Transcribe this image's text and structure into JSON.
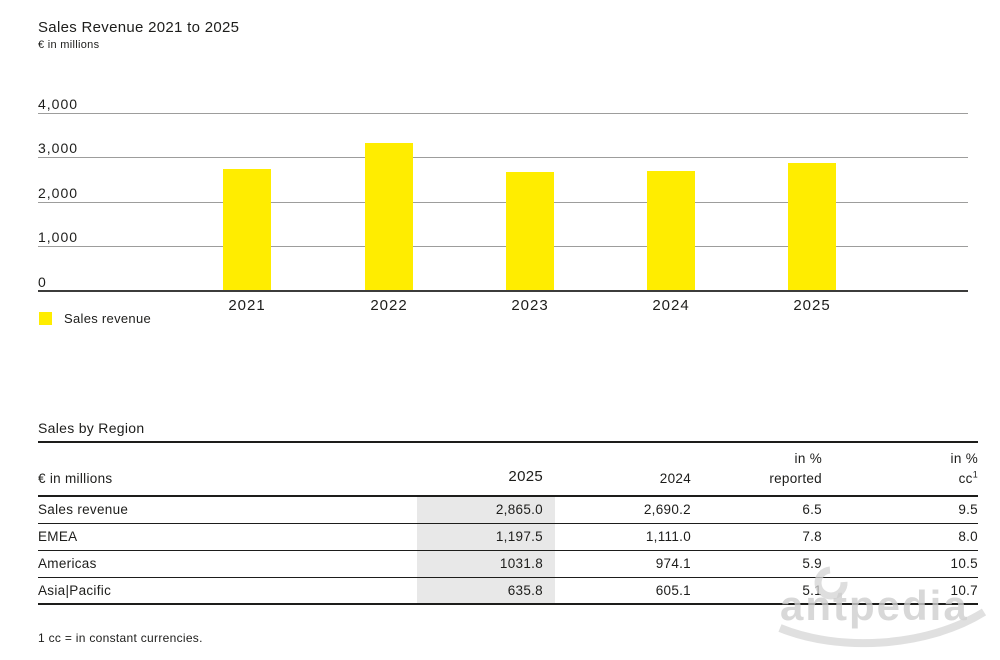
{
  "chart": {
    "title": "Sales Revenue 2021 to 2025",
    "subtitle": "€ in millions",
    "legend_label": "Sales revenue"
  },
  "chart_data": {
    "type": "bar",
    "title": "Sales Revenue 2021 to 2025",
    "ylabel_unit": "€ in millions",
    "categories": [
      "2021",
      "2022",
      "2023",
      "2024",
      "2025"
    ],
    "values": [
      2730,
      3330,
      2670,
      2690.2,
      2865.0
    ],
    "ylim": [
      0,
      4000
    ],
    "tick_values": [
      0,
      1000,
      2000,
      3000,
      4000
    ],
    "tick_labels": [
      "0",
      "1,000",
      "2,000",
      "3,000",
      "4,000"
    ],
    "legend": [
      "Sales revenue"
    ],
    "legend_position": "bottom-left",
    "grid": true,
    "bar_color": "#FFED00",
    "gridline_color": "#9d9d9c",
    "baseline_color": "#3c3c3b"
  },
  "table": {
    "title": "Sales by Region",
    "unit_label": "€ in millions",
    "col_2025": "2025",
    "col_2024": "2024",
    "col_pct_reported_line1": "in %",
    "col_pct_reported_line2": "reported",
    "col_pct_cc_line1": "in %",
    "col_pct_cc_line2": "cc",
    "col_pct_cc_sup": "1",
    "highlight_color": "#e8e8e8",
    "rows": [
      {
        "label": "Sales revenue",
        "y2025": "2,865.0",
        "y2024": "2,690.2",
        "pct_reported": "6.5",
        "pct_cc": "9.5"
      },
      {
        "label": "EMEA",
        "y2025": "1,197.5",
        "y2024": "1,111.0",
        "pct_reported": "7.8",
        "pct_cc": "8.0"
      },
      {
        "label": "Americas",
        "y2025": "1031.8",
        "y2024": "974.1",
        "pct_reported": "5.9",
        "pct_cc": "10.5"
      },
      {
        "label": "Asia|Pacific",
        "y2025": "635.8",
        "y2024": "605.1",
        "pct_reported": "5.1",
        "pct_cc": "10.7"
      }
    ]
  },
  "footnote": "1 cc = in constant currencies.",
  "watermark": {
    "text": "antpedia",
    "color": "#cfcfcf"
  }
}
